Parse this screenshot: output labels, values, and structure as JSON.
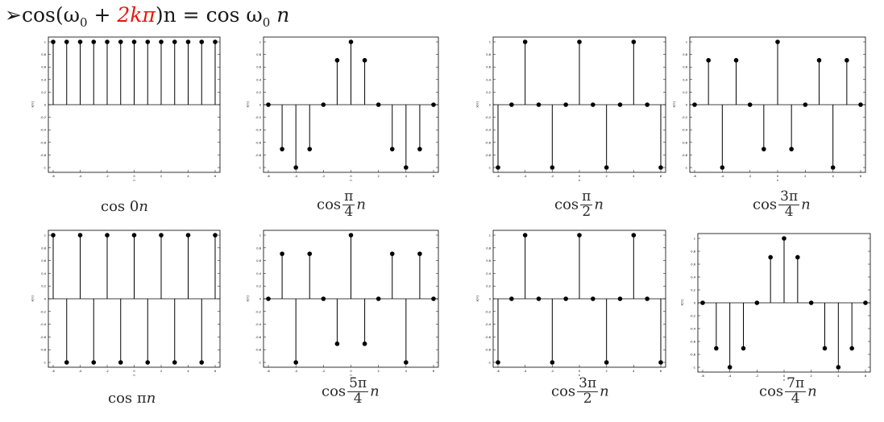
{
  "heading": {
    "bullet": "➢",
    "lhs_pre": "cos(ω",
    "sub0": "0",
    "plus": " + ",
    "red_term": "2kπ",
    "lhs_post": ")n = cos ω",
    "sub1": "0",
    "rhs_post": " n"
  },
  "plots": [
    {
      "caption_pre": "cos 0",
      "caption_var": "n",
      "num": "",
      "den": "",
      "y": [
        1,
        1,
        1,
        1,
        1,
        1,
        1,
        1,
        1,
        1,
        1,
        1,
        1
      ],
      "xticks": [
        "-6",
        "-4",
        "-2",
        "0",
        "2",
        "4",
        "6"
      ]
    },
    {
      "caption_pre": "cos",
      "caption_var": "n",
      "num": "π",
      "den": "4",
      "y": [
        0,
        -0.707,
        -1,
        -0.707,
        0,
        0.707,
        1,
        0.707,
        0,
        -0.707,
        -1,
        -0.707,
        0
      ],
      "xticks": [
        "-6",
        "-4",
        "-2",
        "0",
        "2",
        "4",
        "6"
      ]
    },
    {
      "caption_pre": "cos",
      "caption_var": "n",
      "num": "π",
      "den": "2",
      "y": [
        -1,
        0,
        1,
        0,
        -1,
        0,
        1,
        0,
        -1,
        0,
        1,
        0,
        -1
      ],
      "xticks": [
        "-6",
        "-4",
        "-2",
        "0",
        "2",
        "4",
        "6"
      ]
    },
    {
      "caption_pre": "cos",
      "caption_var": "n",
      "num": "3π",
      "den": "4",
      "y": [
        0,
        0.707,
        -1,
        0.707,
        0,
        -0.707,
        1,
        -0.707,
        0,
        0.707,
        -1,
        0.707,
        0
      ],
      "xticks": [
        "-6",
        "-4",
        "-2",
        "0",
        "2",
        "4",
        "6"
      ]
    },
    {
      "caption_pre": "cos π",
      "caption_var": "n",
      "num": "",
      "den": "",
      "y": [
        1,
        -1,
        1,
        -1,
        1,
        -1,
        1,
        -1,
        1,
        -1,
        1,
        -1,
        1
      ],
      "xticks": [
        "-6",
        "-4",
        "-2",
        "0",
        "2",
        "4",
        "6"
      ]
    },
    {
      "caption_pre": "cos",
      "caption_var": "n",
      "num": "5π",
      "den": "4",
      "y": [
        0,
        0.707,
        -1,
        0.707,
        0,
        -0.707,
        1,
        -0.707,
        0,
        0.707,
        -1,
        0.707,
        0
      ],
      "xticks": [
        "-6",
        "-4",
        "-2",
        "0",
        "2",
        "4",
        "6"
      ]
    },
    {
      "caption_pre": "cos",
      "caption_var": "n",
      "num": "3π",
      "den": "2",
      "y": [
        -1,
        0,
        1,
        0,
        -1,
        0,
        1,
        0,
        -1,
        0,
        1,
        0,
        -1
      ],
      "xticks": [
        "-6",
        "-4",
        "-2",
        "0",
        "2",
        "4",
        "6"
      ]
    },
    {
      "caption_pre": "cos",
      "caption_var": "n",
      "num": "7π",
      "den": "4",
      "y": [
        0,
        -0.707,
        -1,
        -0.707,
        0,
        0.707,
        1,
        0.707,
        0,
        -0.707,
        -1,
        -0.707,
        0
      ],
      "xticks": [
        "-6",
        "-4",
        "-2",
        "0",
        "2",
        "4",
        "6"
      ]
    }
  ],
  "yticks": [
    "1",
    "0.8",
    "0.6",
    "0.4",
    "0.2",
    "0",
    "-0.2",
    "-0.4",
    "-0.6",
    "-0.8",
    "-1"
  ],
  "ylabel": "x[n]",
  "xlabel": "n",
  "colors": {
    "stem": "#000000",
    "axis": "#000000",
    "red": "#e8150c"
  }
}
